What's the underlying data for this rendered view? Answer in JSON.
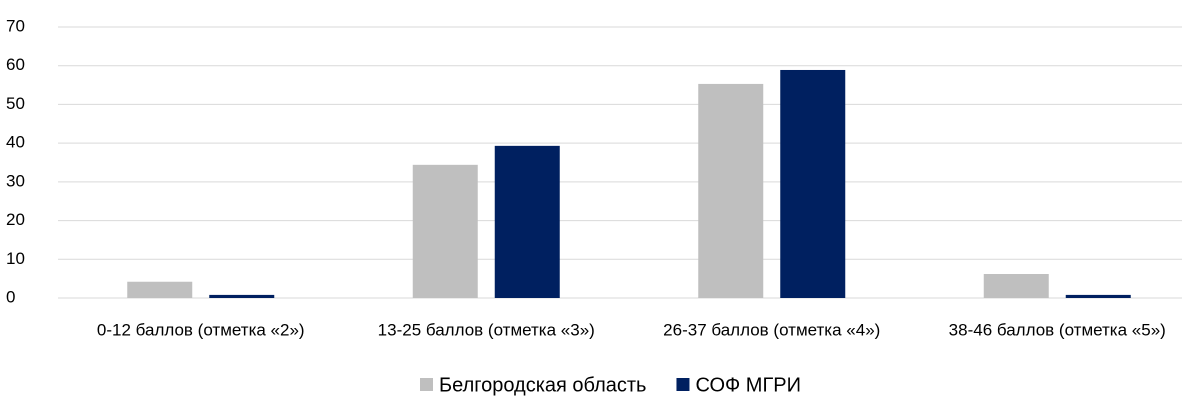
{
  "chart_data": {
    "type": "bar",
    "categories": [
      "0-12 баллов (отметка «2»)",
      "13-25 баллов (отметка «3»)",
      "26-37 баллов (отметка «4»)",
      "38-46 баллов (отметка «5»)"
    ],
    "series": [
      {
        "name": "Белгородская область",
        "color": "#bfbfbf",
        "values": [
          4.2,
          34.4,
          55.3,
          6.2
        ]
      },
      {
        "name": "СОФ МГРИ",
        "color": "#002060",
        "values": [
          0.8,
          39.3,
          58.9,
          0.8
        ]
      }
    ],
    "ylim": [
      0,
      70
    ],
    "yticks": [
      0,
      10,
      20,
      30,
      40,
      50,
      60,
      70
    ],
    "grid": true,
    "legend": "bottom"
  }
}
